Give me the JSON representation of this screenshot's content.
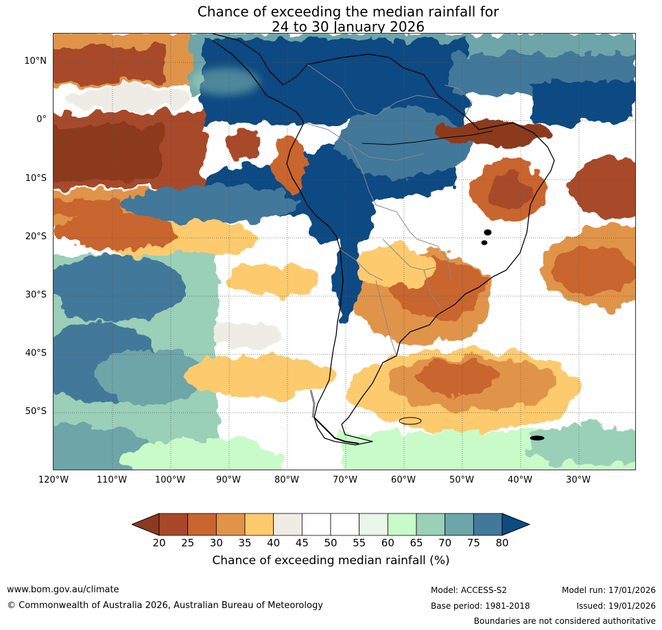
{
  "title": {
    "line1": "Chance of exceeding the median rainfall for",
    "line2": "24 to 30 January 2026"
  },
  "map": {
    "lat_labels": [
      "10°N",
      "0°",
      "10°S",
      "20°S",
      "30°S",
      "40°S",
      "50°S"
    ],
    "lon_labels": [
      "120°W",
      "110°W",
      "100°W",
      "90°W",
      "80°W",
      "70°W",
      "60°W",
      "50°W",
      "40°W",
      "30°W"
    ]
  },
  "colorbar": {
    "ticks": [
      "20",
      "25",
      "30",
      "35",
      "40",
      "45",
      "50",
      "55",
      "60",
      "65",
      "70",
      "75",
      "80"
    ],
    "colors": [
      "#8b3a1f",
      "#a8482a",
      "#c9652f",
      "#e0944a",
      "#fdcb6e",
      "#efece6",
      "#ffffff",
      "#ffffff",
      "#eaf6ea",
      "#c8fbc8",
      "#9acfb8",
      "#6ea5a8",
      "#42789a",
      "#0f4a82"
    ],
    "label": "Chance of exceeding median rainfall (%)"
  },
  "footer": {
    "website": "www.bom.gov.au/climate",
    "copyright": "© Commonwealth of Australia 2026, Australian Bureau of Meteorology",
    "model": "Model: ACCESS-S2",
    "model_run": "Model run: 17/01/2026",
    "base_period": "Base period: 1981-2018",
    "issued": "Issued: 19/01/2026",
    "disclaimer": "Boundaries are not considered authoritative"
  }
}
